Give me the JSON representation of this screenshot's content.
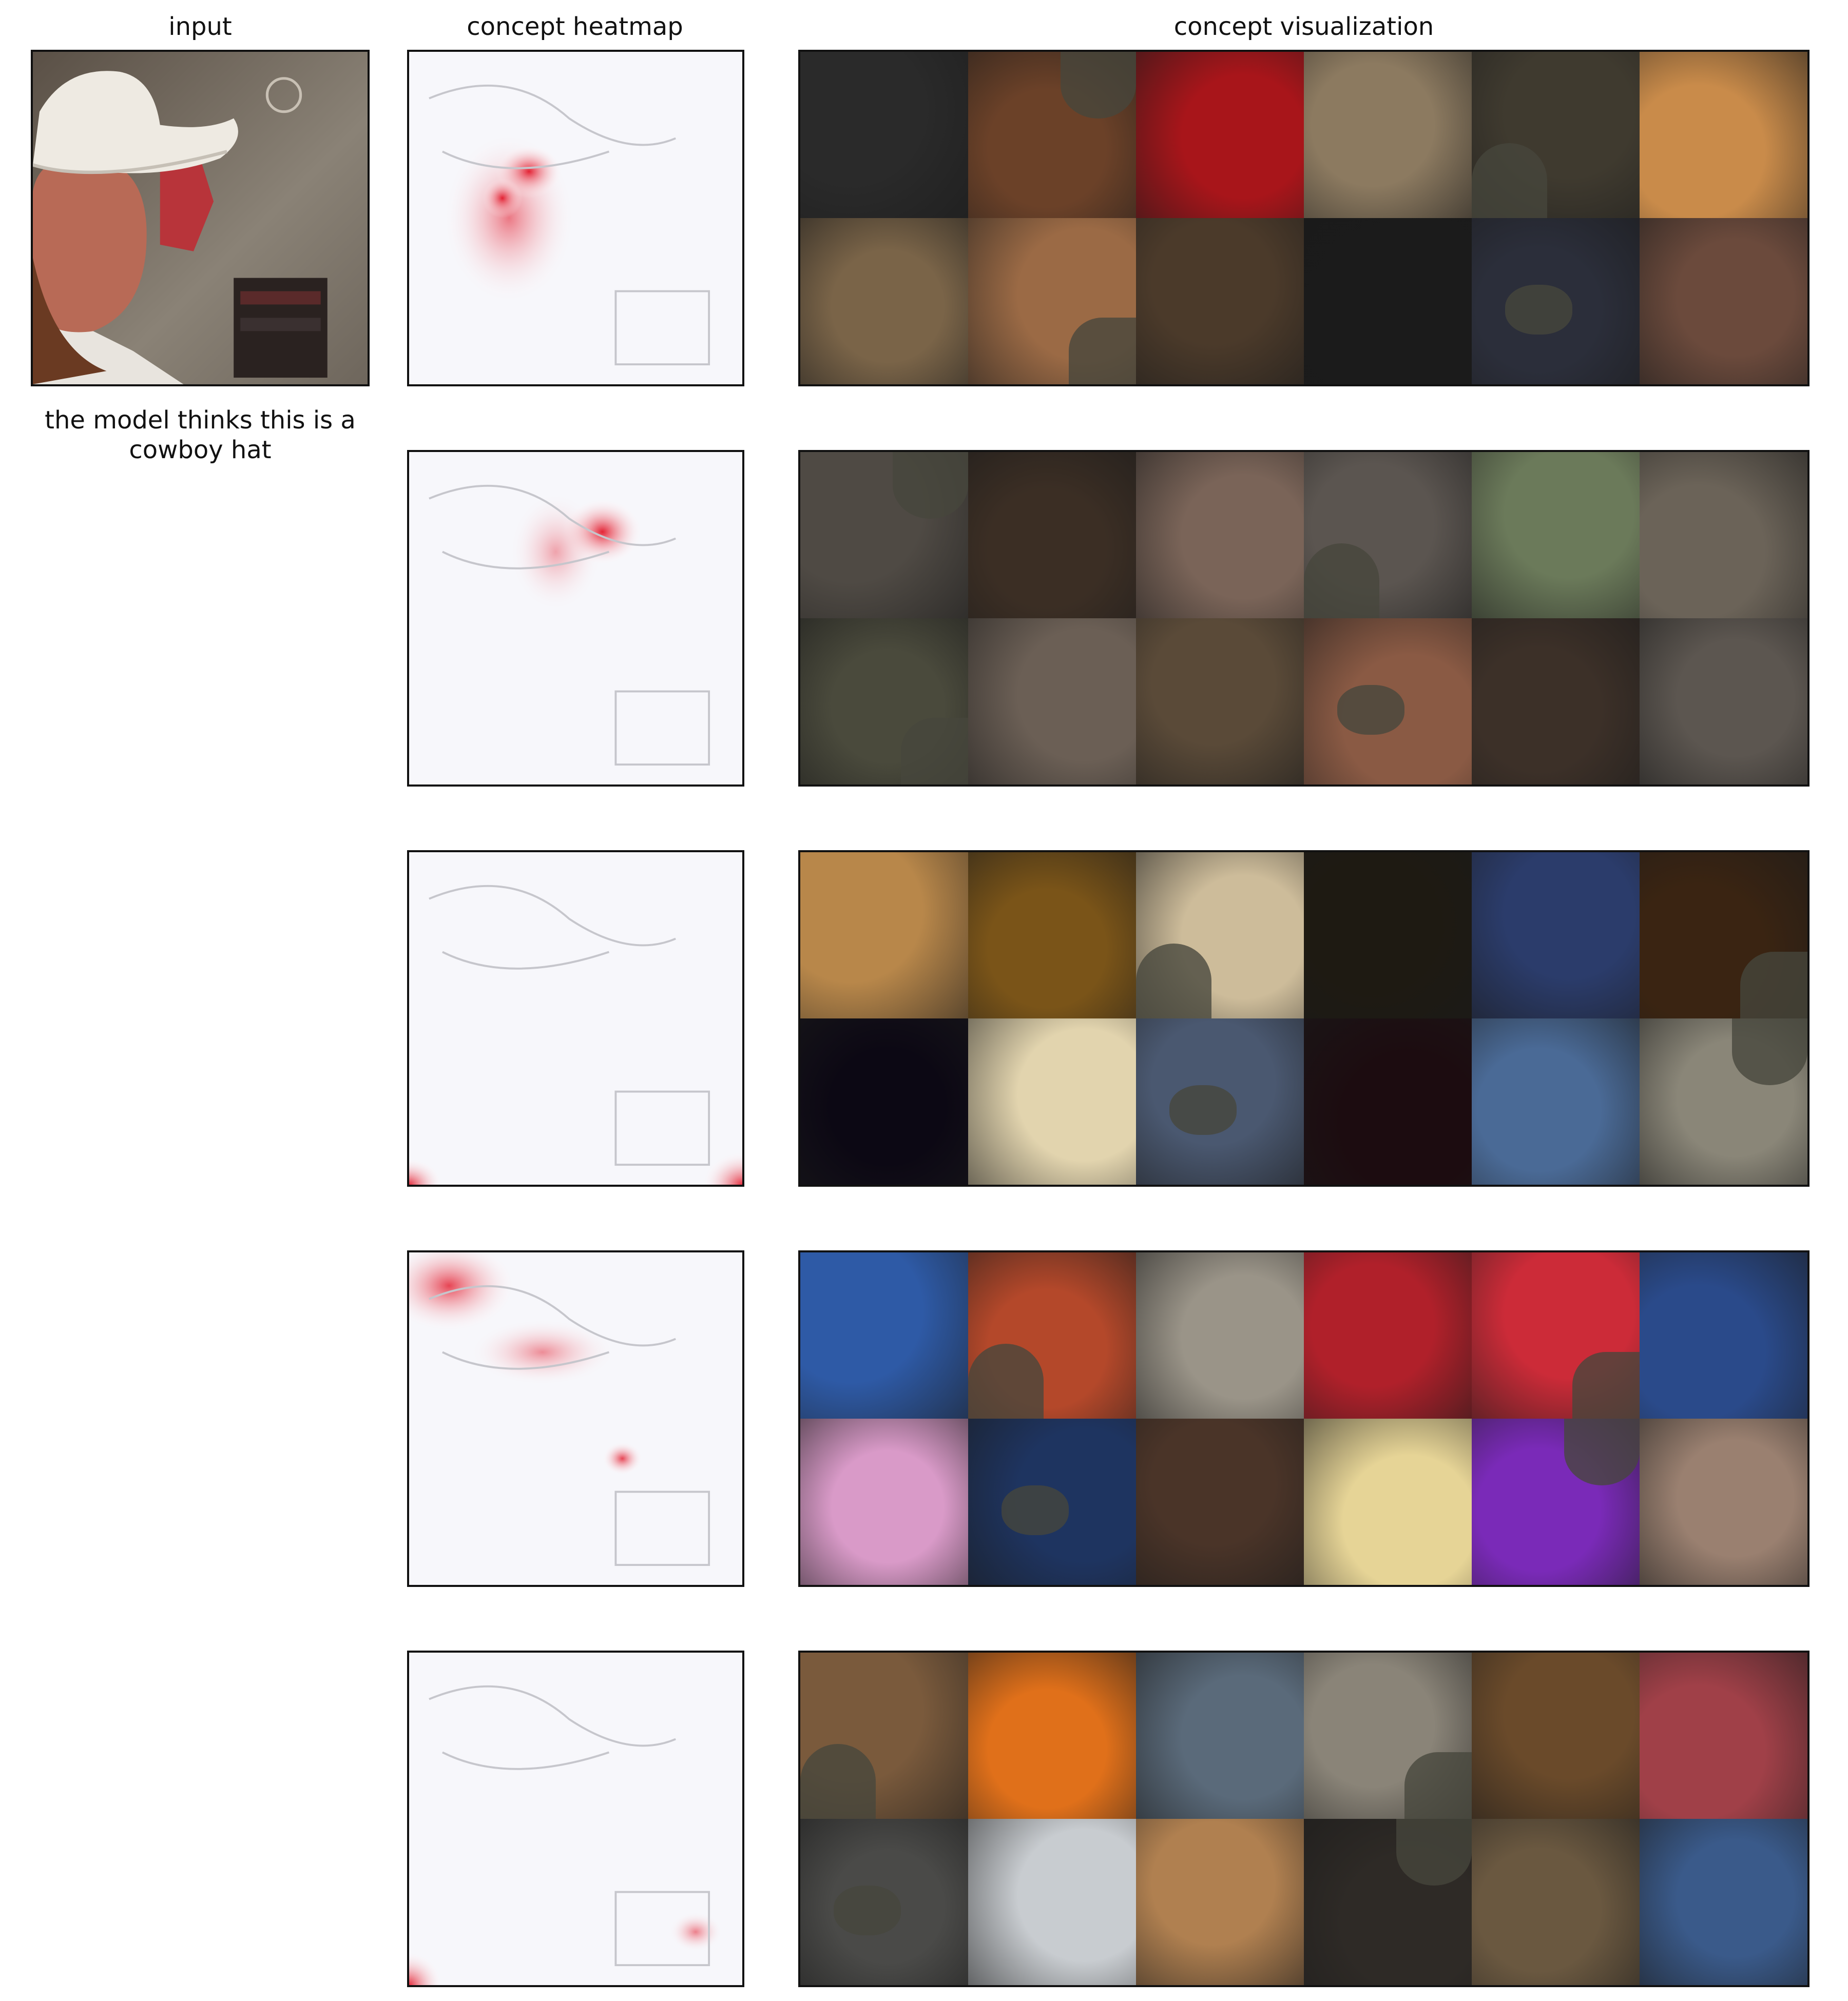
{
  "headers": {
    "input": "input",
    "heatmap": "concept heatmap",
    "visualization": "concept visualization"
  },
  "prediction_caption": "the model thinks this is a cowboy hat",
  "input_image": {
    "description_icon": "person-in-cowboy-hat-image"
  },
  "concepts": [
    {
      "heatmap_focus": "face-and-hat-brim",
      "tiles": [
        "#2a2a2a",
        "#6b4128",
        "#a8151a",
        "#8c7a60",
        "#3f3a2f",
        "#c98b4a",
        "#7a6448",
        "#9b6a45",
        "#4b3a2a",
        "#1b1b1b",
        "#2b2e3a",
        "#6b4a3c"
      ]
    },
    {
      "heatmap_focus": "hat-crown",
      "tiles": [
        "#4f4a44",
        "#3b2e24",
        "#7a6458",
        "#5b5550",
        "#6b7a5a",
        "#6b6358",
        "#4a4a3c",
        "#6b5f55",
        "#5a4a38",
        "#8a5a44",
        "#3c3028",
        "#5c5650"
      ]
    },
    {
      "heatmap_focus": "bottom-corners",
      "tiles": [
        "#b8874a",
        "#7a5418",
        "#cdbc9a",
        "#1e1a12",
        "#2b3c6b",
        "#3a2412",
        "#0c0814",
        "#e2d4ae",
        "#4a5870",
        "#1c0c10",
        "#4a6a96",
        "#8a8678"
      ]
    },
    {
      "heatmap_focus": "hat-and-upper-left",
      "tiles": [
        "#2e5aa6",
        "#b4482a",
        "#9a9488",
        "#b0202a",
        "#cc2b38",
        "#2a4a8a",
        "#d99ac8",
        "#1e3460",
        "#4a3428",
        "#e6d496",
        "#7a2ab8",
        "#9a8070"
      ]
    },
    {
      "heatmap_focus": "bottom-left-corner",
      "tiles": [
        "#7a5a3c",
        "#e0701a",
        "#5a6a7a",
        "#8a8478",
        "#6a4a2a",
        "#a04048",
        "#4a4a48",
        "#c8ccd0",
        "#b08050",
        "#2e2a26",
        "#6a5840",
        "#3a5a8a"
      ]
    }
  ]
}
